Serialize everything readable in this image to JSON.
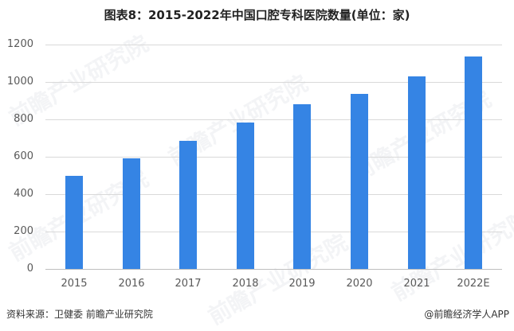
{
  "title": "图表8：2015-2022年中国口腔专科医院数量(单位：家)",
  "footer": {
    "source": "资料来源：卫健委 前瞻产业研究院",
    "credit": "@前瞻经济学人APP"
  },
  "watermark": "前瞻产业研究院",
  "colors": {
    "bar": "#3584e4",
    "grid": "#d9d9d9",
    "axis_text": "#595959"
  },
  "chart_data": {
    "type": "bar",
    "title": "图表8：2015-2022年中国口腔专科医院数量(单位：家)",
    "xlabel": "",
    "ylabel": "",
    "categories": [
      "2015",
      "2016",
      "2017",
      "2018",
      "2019",
      "2020",
      "2021",
      "2022E"
    ],
    "values": [
      498,
      591,
      685,
      783,
      881,
      936,
      1030,
      1136
    ],
    "ylim": [
      0,
      1200
    ],
    "yticks": [
      "0",
      "200",
      "400",
      "600",
      "800",
      "1000",
      "1200"
    ],
    "grid": true,
    "legend": "none"
  }
}
